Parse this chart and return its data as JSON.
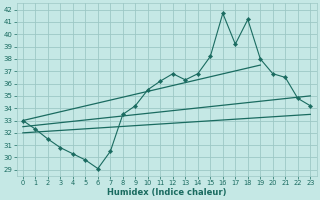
{
  "xlabel": "Humidex (Indice chaleur)",
  "background_color": "#c5e8e5",
  "grid_color": "#9dc8c5",
  "line_color": "#1a6b60",
  "xlim": [
    -0.5,
    23.5
  ],
  "ylim": [
    28.5,
    42.5
  ],
  "yticks": [
    29,
    30,
    31,
    32,
    33,
    34,
    35,
    36,
    37,
    38,
    39,
    40,
    41,
    42
  ],
  "xticks": [
    0,
    1,
    2,
    3,
    4,
    5,
    6,
    7,
    8,
    9,
    10,
    11,
    12,
    13,
    14,
    15,
    16,
    17,
    18,
    19,
    20,
    21,
    22,
    23
  ],
  "main_line": [
    33.0,
    32.3,
    31.5,
    30.8,
    30.3,
    29.8,
    29.1,
    30.5,
    33.5,
    34.2,
    35.5,
    36.2,
    36.8,
    36.3,
    36.8,
    38.2,
    41.7,
    39.2,
    41.2,
    38.0,
    36.8,
    36.5,
    34.8,
    34.2
  ],
  "upper_line_x": [
    0,
    19
  ],
  "upper_line_y": [
    33.0,
    37.5
  ],
  "middle_line_x": [
    0,
    23
  ],
  "middle_line_y": [
    32.5,
    35.0
  ],
  "lower_line_x": [
    0,
    23
  ],
  "lower_line_y": [
    32.0,
    33.5
  ],
  "figsize": [
    3.2,
    2.0
  ],
  "dpi": 100
}
